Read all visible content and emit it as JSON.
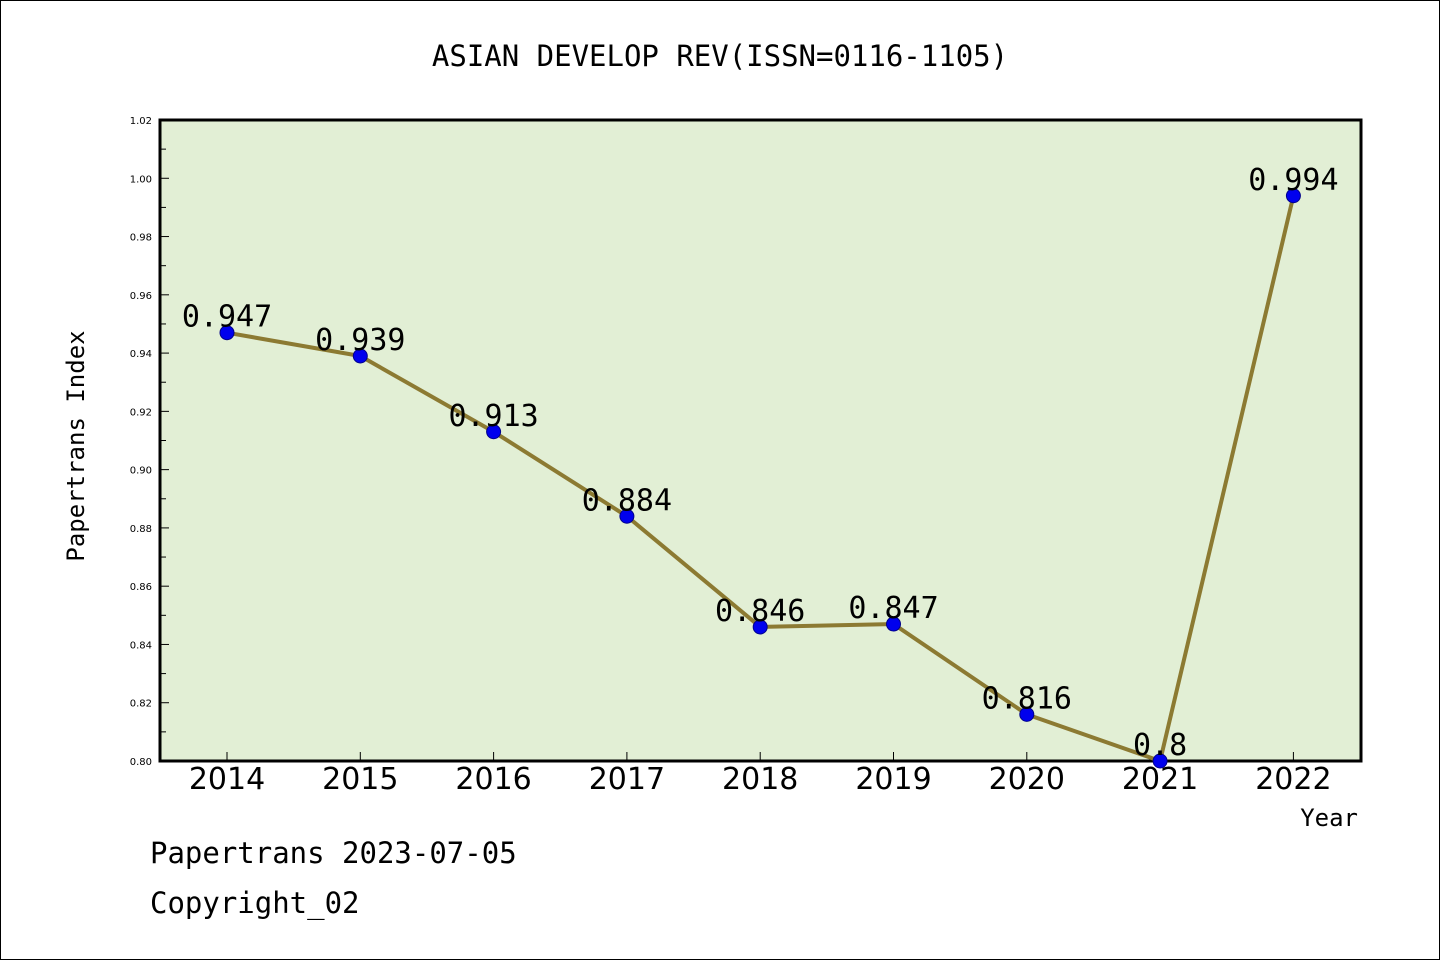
{
  "chart_data": {
    "type": "line",
    "title": "ASIAN DEVELOP REV(ISSN=0116-1105)",
    "xlabel": "Year",
    "ylabel": "Papertrans Index",
    "categories": [
      "2014",
      "2015",
      "2016",
      "2017",
      "2018",
      "2019",
      "2020",
      "2021",
      "2022"
    ],
    "values": [
      0.947,
      0.939,
      0.913,
      0.884,
      0.846,
      0.847,
      0.816,
      0.8,
      0.994
    ],
    "data_labels": [
      "0.947",
      "0.939",
      "0.913",
      "0.884",
      "0.846",
      "0.847",
      "0.816",
      "0.8",
      "0.994"
    ],
    "ylim": [
      0.8,
      1.02
    ],
    "yticks": [
      "0.80",
      "0.82",
      "0.84",
      "0.86",
      "0.88",
      "0.90",
      "0.92",
      "0.94",
      "0.96",
      "0.98",
      "1.00",
      "1.02"
    ],
    "grid": false,
    "legend": "none",
    "colors": {
      "plot_background": "#e2efd5",
      "line": "#8c7a32",
      "marker": "#0000ee",
      "marker_edge": "#00008b"
    }
  },
  "footer": {
    "line1": "Papertrans 2023-07-05",
    "line2": "Copyright_02"
  }
}
